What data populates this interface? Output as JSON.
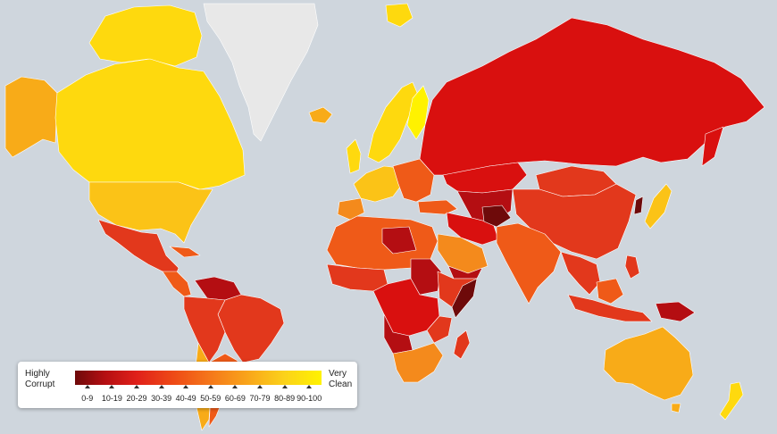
{
  "legend": {
    "low_line1": "Highly",
    "low_line2": "Corrupt",
    "high_line1": "Very",
    "high_line2": "Clean",
    "ranges": [
      "0-9",
      "10-19",
      "20-29",
      "30-39",
      "40-49",
      "50-59",
      "60-69",
      "70-79",
      "80-89",
      "90-100"
    ]
  },
  "colors": {
    "ocean": "#cfd6dd",
    "no_data": "#e8e8e8",
    "score_0_9": "#6e0a0a",
    "score_10_19": "#b40e12",
    "score_20_29": "#d9100f",
    "score_30_39": "#e2381c",
    "score_40_49": "#ef5a18",
    "score_50_59": "#f48a1c",
    "score_60_69": "#f8ab18",
    "score_70_79": "#fbc317",
    "score_80_89": "#fed90e",
    "score_90_100": "#fff200"
  }
}
